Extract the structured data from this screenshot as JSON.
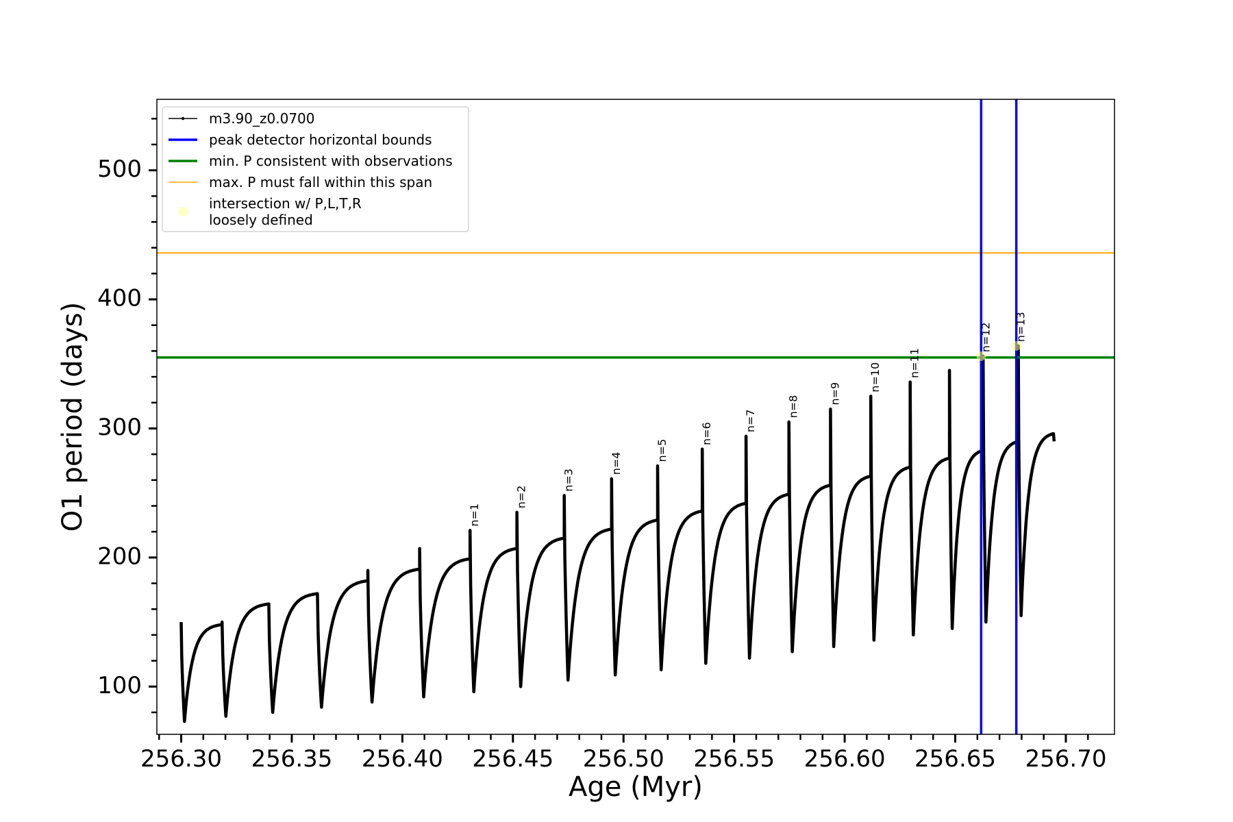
{
  "chart_data": {
    "type": "line",
    "title": "",
    "xlabel": "Age (Myr)",
    "ylabel": "O1 period (days)",
    "xlim": [
      256.289,
      256.722
    ],
    "ylim": [
      63,
      555
    ],
    "xticks": [
      256.3,
      256.35,
      256.4,
      256.45,
      256.5,
      256.55,
      256.6,
      256.65,
      256.7
    ],
    "xtick_labels": [
      "256.30",
      "256.35",
      "256.40",
      "256.45",
      "256.50",
      "256.55",
      "256.60",
      "256.65",
      "256.70"
    ],
    "yticks": [
      100,
      200,
      300,
      400,
      500
    ],
    "ytick_labels": [
      "100",
      "200",
      "300",
      "400",
      "500"
    ],
    "grid": false,
    "legend_position": "top-left",
    "series": [
      {
        "name": "m3.90_z0.0700",
        "color": "#000000",
        "cycles": [
          {
            "start": 256.3,
            "end": 256.3185,
            "min": 73,
            "max": 148,
            "spike": 150
          },
          {
            "start": 256.3185,
            "end": 256.3396,
            "min": 77,
            "max": 164,
            "spike": 164
          },
          {
            "start": 256.3396,
            "end": 256.3616,
            "min": 80,
            "max": 172,
            "spike": 172
          },
          {
            "start": 256.3616,
            "end": 256.3844,
            "min": 84,
            "max": 182,
            "spike": 190
          },
          {
            "start": 256.3844,
            "end": 256.4078,
            "min": 88,
            "max": 191,
            "spike": 207
          },
          {
            "start": 256.4078,
            "end": 256.4306,
            "min": 92,
            "max": 199,
            "spike": 221
          },
          {
            "start": 256.4306,
            "end": 256.4518,
            "min": 96,
            "max": 207,
            "spike": 235
          },
          {
            "start": 256.4518,
            "end": 256.4732,
            "min": 100,
            "max": 215,
            "spike": 248
          },
          {
            "start": 256.4732,
            "end": 256.4946,
            "min": 105,
            "max": 222,
            "spike": 261
          },
          {
            "start": 256.4946,
            "end": 256.5154,
            "min": 109,
            "max": 229,
            "spike": 271
          },
          {
            "start": 256.5154,
            "end": 256.5356,
            "min": 113,
            "max": 236,
            "spike": 284
          },
          {
            "start": 256.5356,
            "end": 256.5554,
            "min": 118,
            "max": 242,
            "spike": 294
          },
          {
            "start": 256.5554,
            "end": 256.5748,
            "min": 122,
            "max": 249,
            "spike": 305
          },
          {
            "start": 256.5748,
            "end": 256.5936,
            "min": 127,
            "max": 256,
            "spike": 315
          },
          {
            "start": 256.5936,
            "end": 256.6118,
            "min": 131,
            "max": 263,
            "spike": 325
          },
          {
            "start": 256.6118,
            "end": 256.6296,
            "min": 136,
            "max": 270,
            "spike": 336
          },
          {
            "start": 256.6296,
            "end": 256.6474,
            "min": 140,
            "max": 277,
            "spike": 345
          },
          {
            "start": 256.6474,
            "end": 256.6626,
            "min": 145,
            "max": 283,
            "spike": 356
          },
          {
            "start": 256.6626,
            "end": 256.6785,
            "min": 150,
            "max": 290,
            "spike": 364
          },
          {
            "start": 256.6785,
            "end": 256.6944,
            "min": 155,
            "max": 296,
            "spike": 296
          }
        ]
      }
    ],
    "reference_lines": {
      "peak_bounds_x": [
        256.6617,
        256.6776
      ],
      "min_period_y": 355,
      "max_period_y": 436
    },
    "intersections": [
      {
        "x": 256.6617,
        "y": 356
      },
      {
        "x": 256.6776,
        "y": 364
      }
    ],
    "annotations": [
      {
        "text": "n=1",
        "x": 256.4306,
        "y": 224
      },
      {
        "text": "n=2",
        "x": 256.4518,
        "y": 238
      },
      {
        "text": "n=3",
        "x": 256.4732,
        "y": 251
      },
      {
        "text": "n=4",
        "x": 256.4946,
        "y": 264
      },
      {
        "text": "n=5",
        "x": 256.5154,
        "y": 274
      },
      {
        "text": "n=6",
        "x": 256.5356,
        "y": 287
      },
      {
        "text": "n=7",
        "x": 256.5554,
        "y": 297
      },
      {
        "text": "n=8",
        "x": 256.5748,
        "y": 308
      },
      {
        "text": "n=9",
        "x": 256.5936,
        "y": 318
      },
      {
        "text": "n=10",
        "x": 256.6118,
        "y": 328
      },
      {
        "text": "n=11",
        "x": 256.6296,
        "y": 339
      },
      {
        "text": "n=12",
        "x": 256.6617,
        "y": 359
      },
      {
        "text": "n=13",
        "x": 256.6776,
        "y": 367
      }
    ],
    "legend": [
      {
        "label": "m3.90_z0.0700",
        "color": "#000000",
        "kind": "line-dot"
      },
      {
        "label": "peak detector horizontal bounds",
        "color": "#0000ff",
        "kind": "line-thick"
      },
      {
        "label": "min. P consistent with observations",
        "color": "#008000",
        "kind": "line-thick"
      },
      {
        "label": "max. P must fall within this span",
        "color": "#ffa500",
        "kind": "line-thin"
      },
      {
        "label": "intersection w/ P,L,T,R",
        "label2": "loosely defined",
        "color": "#ffff99",
        "kind": "marker"
      }
    ]
  }
}
